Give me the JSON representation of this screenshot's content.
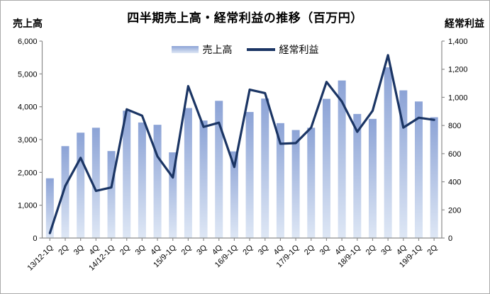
{
  "chart_data": {
    "type": "combo",
    "subtype": "bar+line, dual axis",
    "title": "四半期売上高・経常利益の推移（百万円）",
    "legend": {
      "position": "top",
      "entries": [
        "売上高",
        "経常利益"
      ]
    },
    "categories": [
      "13/12-1Q",
      "2Q",
      "3Q",
      "4Q",
      "14/12-1Q",
      "2Q",
      "3Q",
      "4Q",
      "15/9-1Q",
      "2Q",
      "3Q",
      "4Q",
      "16/9-1Q",
      "2Q",
      "3Q",
      "4Q",
      "17/9-1Q",
      "2Q",
      "3Q",
      "4Q",
      "18/9-1Q",
      "2Q",
      "3Q",
      "4Q",
      "19/9-1Q",
      "2Q"
    ],
    "left_axis": {
      "title": "売上高",
      "min": 0,
      "max": 6000,
      "step": 1000,
      "tick_labels": [
        "0",
        "1,000",
        "2,000",
        "3,000",
        "4,000",
        "5,000",
        "6,000"
      ]
    },
    "right_axis": {
      "title": "経常利益",
      "min": 0,
      "max": 1400,
      "step": 200,
      "tick_labels": [
        "0",
        "200",
        "400",
        "600",
        "800",
        "1,000",
        "1,200",
        "1,400"
      ]
    },
    "series": [
      {
        "name": "売上高",
        "type": "bar",
        "axis": "left",
        "values": [
          1820,
          2800,
          3210,
          3360,
          2650,
          3880,
          3520,
          3450,
          2610,
          3960,
          3580,
          4180,
          2640,
          3840,
          4250,
          3500,
          3290,
          3360,
          4240,
          4800,
          3780,
          3630,
          5200,
          4500,
          4160,
          3680
        ]
      },
      {
        "name": "経常利益",
        "type": "line",
        "axis": "right",
        "values": [
          35,
          370,
          570,
          335,
          360,
          915,
          870,
          580,
          430,
          1080,
          790,
          820,
          505,
          1055,
          1030,
          670,
          675,
          785,
          1110,
          970,
          755,
          905,
          1300,
          785,
          855,
          840
        ]
      }
    ],
    "grid": false,
    "colors": {
      "bar_gradient_top": "#8CA3D6",
      "bar_gradient_bottom": "#DEE7F5",
      "line": "#1B3564",
      "axis": "#8C8C8C",
      "text": "#000000",
      "background": "#FFFFFF",
      "border": "#ABABAB"
    }
  }
}
